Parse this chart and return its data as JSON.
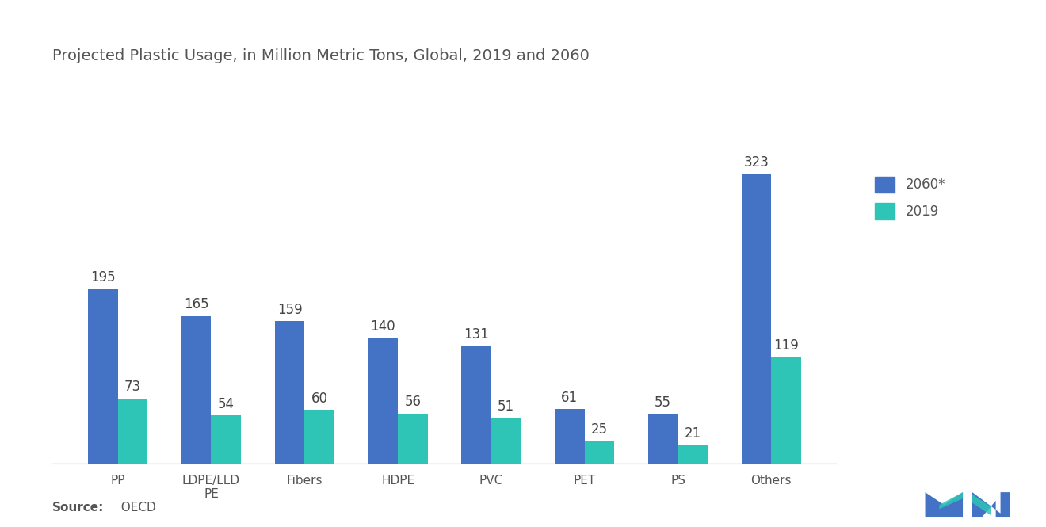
{
  "title": "Projected Plastic Usage, in Million Metric Tons, Global, 2019 and 2060",
  "categories": [
    "PP",
    "LDPE/LLD\nPE",
    "Fibers",
    "HDPE",
    "PVC",
    "PET",
    "PS",
    "Others"
  ],
  "values_2060": [
    195,
    165,
    159,
    140,
    131,
    61,
    55,
    323
  ],
  "values_2019": [
    73,
    54,
    60,
    56,
    51,
    25,
    21,
    119
  ],
  "color_2060": "#4472C4",
  "color_2019": "#2EC4B6",
  "legend_2060": "2060*",
  "legend_2019": "2019",
  "source_bold": "Source:",
  "source_normal": "  OECD",
  "bar_width": 0.32,
  "ylim": [
    0,
    400
  ],
  "background_color": "#ffffff",
  "label_fontsize": 12,
  "title_fontsize": 14,
  "tick_fontsize": 11,
  "value_fontsize": 12
}
